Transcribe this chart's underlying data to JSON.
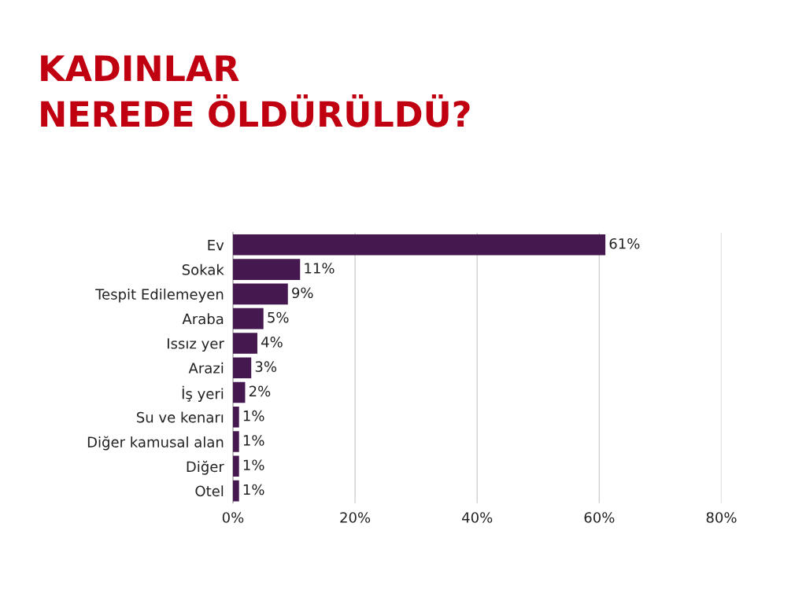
{
  "chart_data": {
    "type": "bar",
    "orientation": "horizontal",
    "title": "KADINLAR\nNEREDE ÖLDÜRÜLDÜ?",
    "categories": [
      "Ev",
      "Sokak",
      "Tespit Edilemeyen",
      "Araba",
      "Issız yer",
      "Arazi",
      "İş yeri",
      "Su ve kenarı",
      "Diğer kamusal alan",
      "Diğer",
      "Otel"
    ],
    "values": [
      61,
      11,
      9,
      5,
      4,
      3,
      2,
      1,
      1,
      1,
      1
    ],
    "value_labels": [
      "61%",
      "11%",
      "9%",
      "5%",
      "4%",
      "3%",
      "2%",
      "1%",
      "1%",
      "1%",
      "1%"
    ],
    "color": "#45194f",
    "xlim": [
      0,
      80
    ],
    "xticks": [
      {
        "value": 0,
        "label": "0%"
      },
      {
        "value": 20,
        "label": "20%"
      },
      {
        "value": 40,
        "label": "40%"
      },
      {
        "value": 60,
        "label": "60%"
      },
      {
        "value": 80,
        "label": "80%"
      }
    ],
    "grid": "x"
  }
}
